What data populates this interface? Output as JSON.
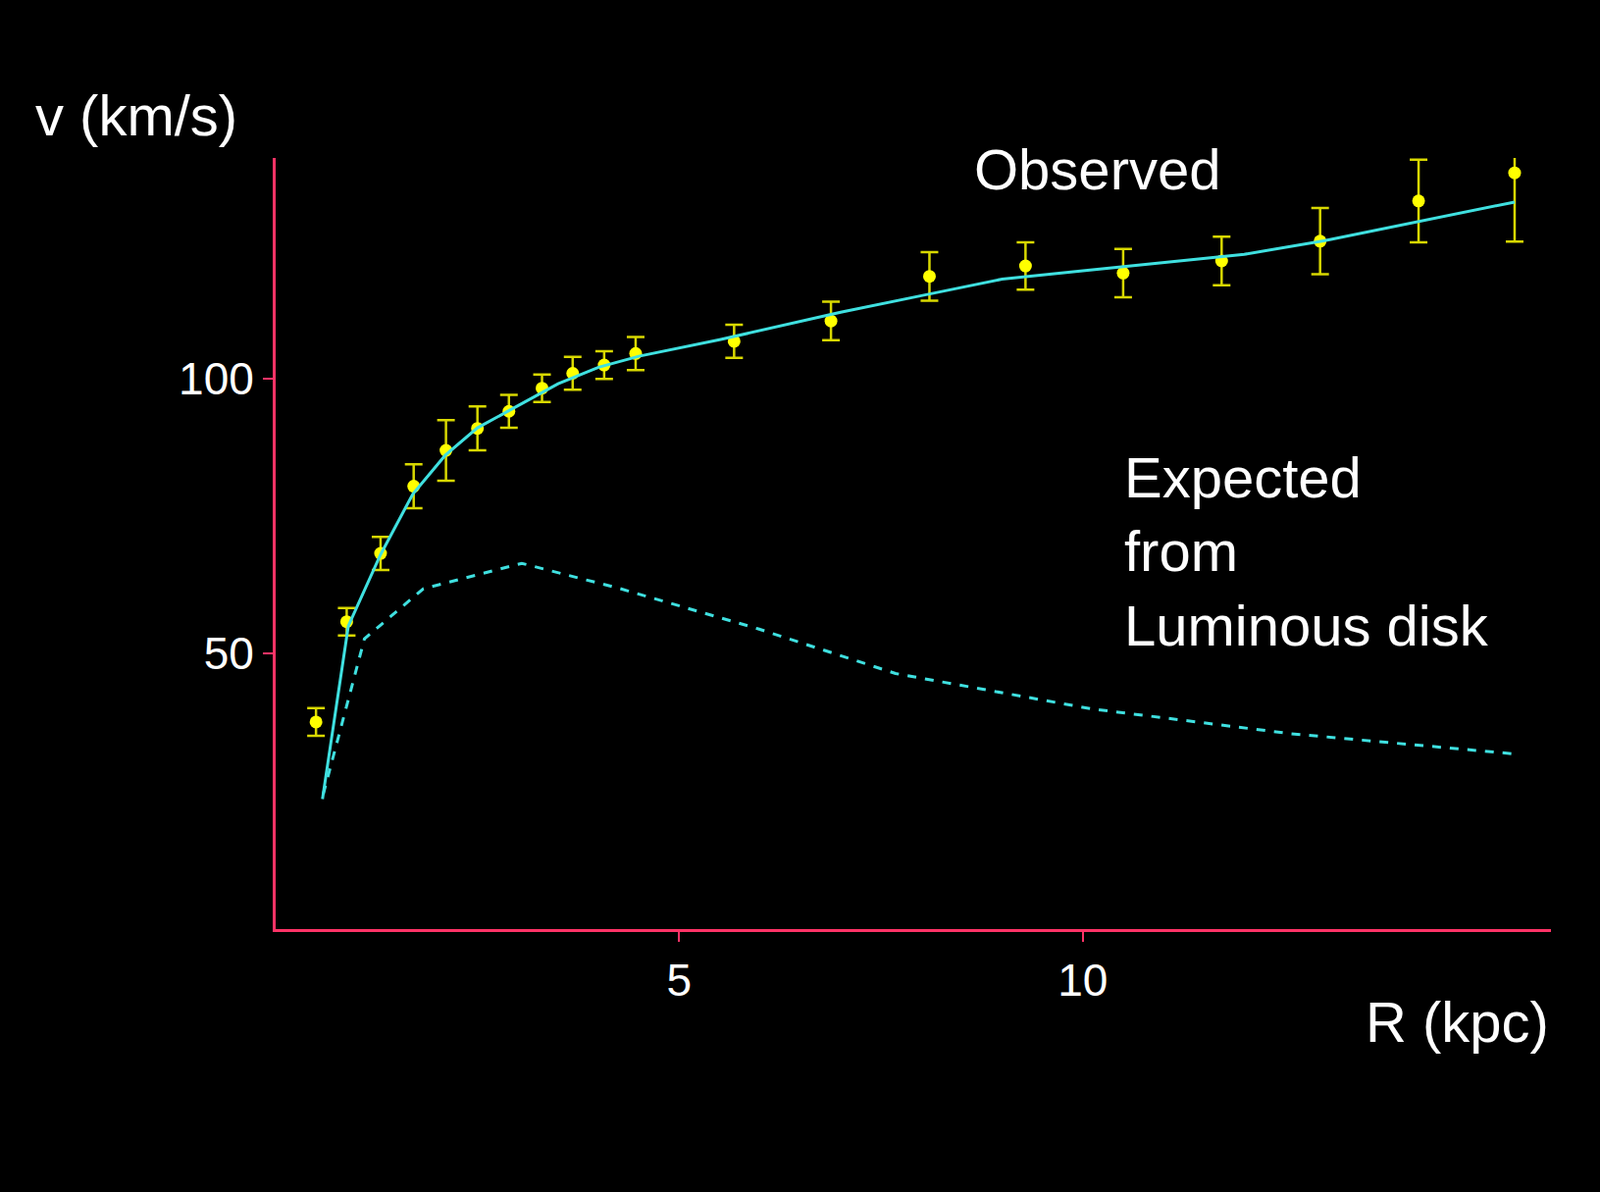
{
  "chart_data": {
    "type": "scatter",
    "xlabel": "R (kpc)",
    "ylabel": "v (km/s)",
    "xlim": [
      0,
      15.8
    ],
    "ylim": [
      0,
      140
    ],
    "xticks": [
      5,
      10
    ],
    "yticks": [
      50,
      100
    ],
    "grid": false,
    "series": [
      {
        "name": "Observed",
        "type": "scatter",
        "marker": "circle",
        "color": "#ffff00",
        "x": [
          0.5,
          0.88,
          1.3,
          1.71,
          2.11,
          2.5,
          2.89,
          3.3,
          3.68,
          4.07,
          4.46,
          5.68,
          6.88,
          8.1,
          9.29,
          10.5,
          11.72,
          12.94,
          14.16,
          15.35
        ],
        "values": [
          37.6,
          55.8,
          68.2,
          80.4,
          86.9,
          90.9,
          94.0,
          98.2,
          100.9,
          102.4,
          104.5,
          106.7,
          110.4,
          118.5,
          120.4,
          119.1,
          121.3,
          124.9,
          132.2,
          137.3
        ],
        "error": [
          2.5,
          2.5,
          3,
          4,
          5.5,
          4,
          3,
          2.5,
          3,
          2.5,
          3,
          3,
          3.5,
          4.4,
          4.3,
          4.4,
          4.4,
          6,
          7.5,
          12.5
        ]
      },
      {
        "type": "line",
        "line_style": "solid",
        "color": "#3fe0e0",
        "x": [
          0.58,
          0.9,
          1.3,
          1.7,
          2.1,
          2.5,
          3.0,
          3.5,
          4.0,
          4.5,
          5.5,
          7.0,
          8.0,
          9.0,
          10.0,
          11.0,
          12.0,
          13.0,
          14.0,
          15.35
        ],
        "values": [
          23.6,
          55,
          68,
          79,
          86,
          91,
          95,
          99,
          102,
          104,
          107,
          112,
          115,
          118,
          119.5,
          121,
          122.5,
          125,
          128,
          132
        ]
      },
      {
        "name": "Expected from Luminous disk",
        "type": "line",
        "line_style": "dash",
        "color": "#3fe0e0",
        "x": [
          0.59,
          1.1,
          1.83,
          3.05,
          4.27,
          5.98,
          7.68,
          10.1,
          12.56,
          15.35
        ],
        "values": [
          24.5,
          52.7,
          61.8,
          66.4,
          61.8,
          54.5,
          46.4,
          40,
          35.5,
          31.8
        ]
      }
    ]
  }
}
